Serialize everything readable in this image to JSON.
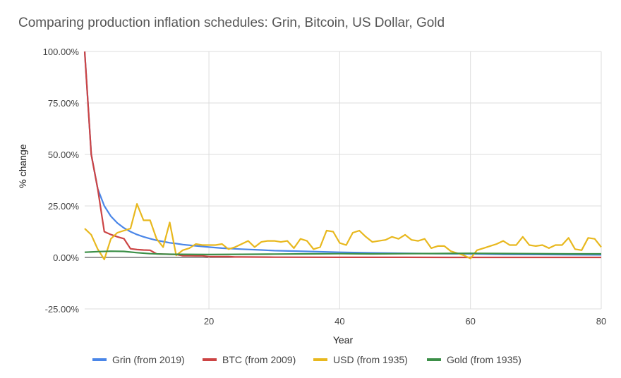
{
  "chart_data": {
    "type": "line",
    "title": "Comparing production inflation schedules: Grin, Bitcoin, US Dollar, Gold",
    "xlabel": "Year",
    "ylabel": "% change",
    "xlim": [
      1,
      80
    ],
    "ylim": [
      -25,
      100
    ],
    "x_ticks": [
      20,
      40,
      60,
      80
    ],
    "y_ticks": [
      -25,
      0,
      25,
      50,
      75,
      100
    ],
    "y_tick_labels": [
      "-25.00%",
      "0.00%",
      "25.00%",
      "50.00%",
      "75.00%",
      "100.00%"
    ],
    "grid": true,
    "legend_position": "bottom",
    "series": [
      {
        "name": "Grin (from 2019)",
        "color": "#4a86e8",
        "x": [
          1,
          2,
          3,
          4,
          5,
          6,
          7,
          8,
          9,
          10,
          11,
          12,
          13,
          14,
          15,
          16,
          18,
          20,
          22,
          25,
          28,
          30,
          35,
          40,
          45,
          50,
          55,
          60,
          65,
          70,
          75,
          80
        ],
        "values": [
          100,
          50,
          33.3,
          25,
          20,
          16.7,
          14.3,
          12.5,
          11.1,
          10,
          9.1,
          8.3,
          7.7,
          7.1,
          6.7,
          6.25,
          5.6,
          5,
          4.5,
          4,
          3.6,
          3.3,
          2.9,
          2.5,
          2.2,
          2,
          1.8,
          1.7,
          1.5,
          1.4,
          1.3,
          1.25
        ]
      },
      {
        "name": "BTC (from 2009)",
        "color": "#cc4444",
        "x": [
          1,
          2,
          3,
          4,
          5,
          6,
          7,
          8,
          9,
          10,
          11,
          12,
          13,
          14,
          15,
          16,
          17,
          18,
          19,
          20,
          21,
          22,
          23,
          24,
          25,
          30,
          40,
          50,
          60,
          70,
          80
        ],
        "values": [
          100,
          50,
          33.3,
          12.5,
          11.1,
          10,
          9.1,
          4.2,
          3.8,
          3.6,
          3.5,
          1.7,
          1.6,
          1.5,
          1.45,
          0.8,
          0.78,
          0.76,
          0.74,
          0.4,
          0.39,
          0.38,
          0.37,
          0.2,
          0.19,
          0.1,
          0.05,
          0.02,
          0.01,
          0.01,
          0
        ]
      },
      {
        "name": "USD (from 1935)",
        "color": "#e8b81e",
        "x": [
          1,
          2,
          3,
          4,
          5,
          6,
          7,
          8,
          9,
          10,
          11,
          12,
          13,
          14,
          15,
          16,
          17,
          18,
          19,
          20,
          21,
          22,
          23,
          24,
          25,
          26,
          27,
          28,
          29,
          30,
          31,
          32,
          33,
          34,
          35,
          36,
          37,
          38,
          39,
          40,
          41,
          42,
          43,
          44,
          45,
          46,
          47,
          48,
          49,
          50,
          51,
          52,
          53,
          54,
          55,
          56,
          57,
          58,
          59,
          60,
          61,
          62,
          63,
          64,
          65,
          66,
          67,
          68,
          69,
          70,
          71,
          72,
          73,
          74,
          75,
          76,
          77,
          78,
          79,
          80
        ],
        "values": [
          14,
          11,
          4,
          -1,
          9,
          12,
          13,
          14,
          26,
          18,
          18,
          9,
          5,
          17,
          1,
          3.5,
          4.5,
          6.5,
          6,
          6,
          6,
          6.5,
          4,
          5,
          6.5,
          8,
          5,
          7.5,
          8,
          8,
          7.5,
          8,
          4.5,
          9,
          8,
          4,
          5,
          13,
          12.5,
          7,
          6,
          12,
          13,
          10,
          7.5,
          8,
          8.5,
          10,
          9,
          11,
          8.5,
          8,
          9,
          4.5,
          5.5,
          5.5,
          3,
          2,
          1,
          -0.5,
          3.5,
          4.5,
          5.5,
          6.5,
          8,
          6,
          6,
          10,
          6,
          5.5,
          6,
          4.5,
          6,
          6,
          9.5,
          4,
          3.5,
          9.5,
          9,
          5
        ]
      },
      {
        "name": "Gold (from 1935)",
        "color": "#3c8f48",
        "x": [
          1,
          3,
          5,
          7,
          9,
          11,
          13,
          15,
          20,
          25,
          30,
          35,
          40,
          45,
          50,
          55,
          60,
          65,
          70,
          75,
          80
        ],
        "values": [
          2.5,
          2.8,
          3,
          2.9,
          2.3,
          1.8,
          1.6,
          1.5,
          1.4,
          1.5,
          1.6,
          1.7,
          1.8,
          1.7,
          1.8,
          1.9,
          2,
          1.9,
          1.8,
          1.7,
          1.7
        ]
      }
    ]
  }
}
